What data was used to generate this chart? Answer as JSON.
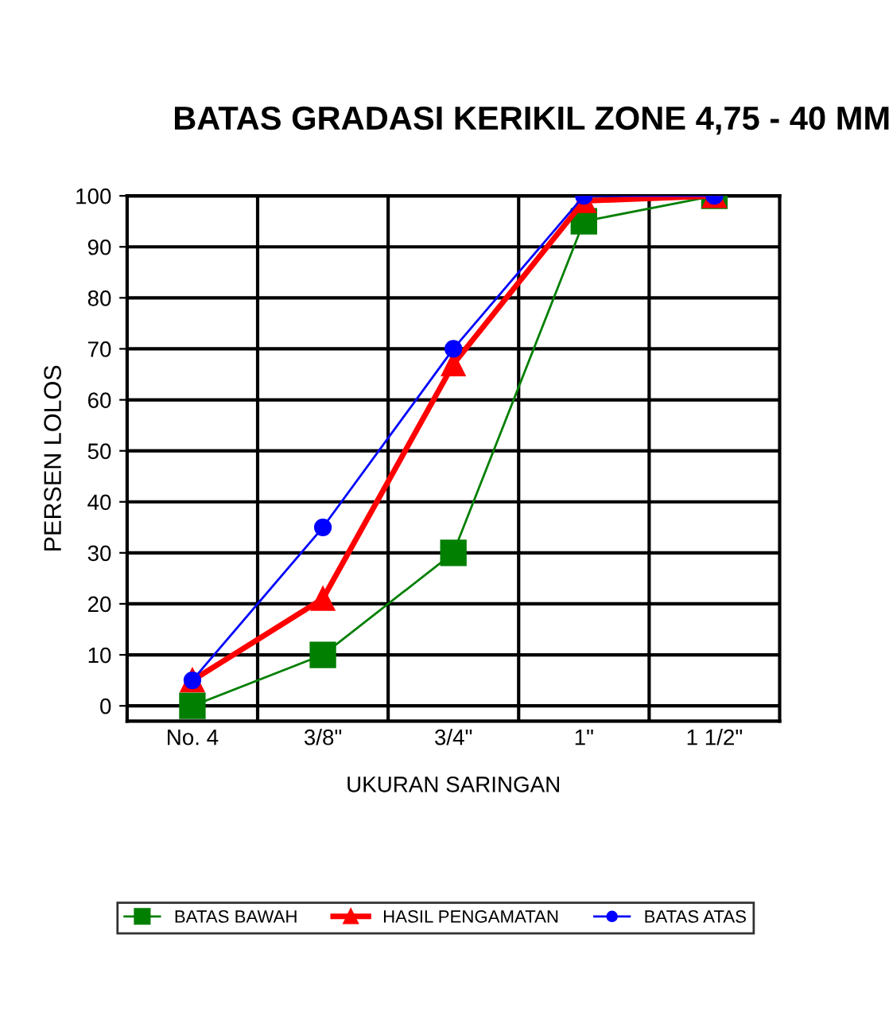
{
  "chart_data": {
    "type": "line",
    "title": "BATAS GRADASI KERIKIL ZONE 4,75 - 40 MM",
    "xlabel": "UKURAN SARINGAN",
    "ylabel": "PERSEN LOLOS",
    "categories": [
      "No. 4",
      "3/8\"",
      "3/4\"",
      "1\"",
      "1 1/2\""
    ],
    "series": [
      {
        "name": "BATAS BAWAH",
        "color": "#007f00",
        "marker": "square",
        "values": [
          0,
          10,
          30,
          95,
          100
        ]
      },
      {
        "name": "HASIL PENGAMATAN",
        "color": "#ff0000",
        "marker": "triangle",
        "values": [
          5,
          21,
          67,
          99,
          100
        ]
      },
      {
        "name": "BATAS ATAS",
        "color": "#0000ff",
        "marker": "circle",
        "values": [
          5,
          35,
          70,
          100,
          100
        ]
      }
    ],
    "ylim": [
      -3,
      100
    ],
    "yticks": [
      0,
      10,
      20,
      30,
      40,
      50,
      60,
      70,
      80,
      90,
      100
    ],
    "grid": true,
    "legend": "bottom",
    "line_style": "solid"
  }
}
